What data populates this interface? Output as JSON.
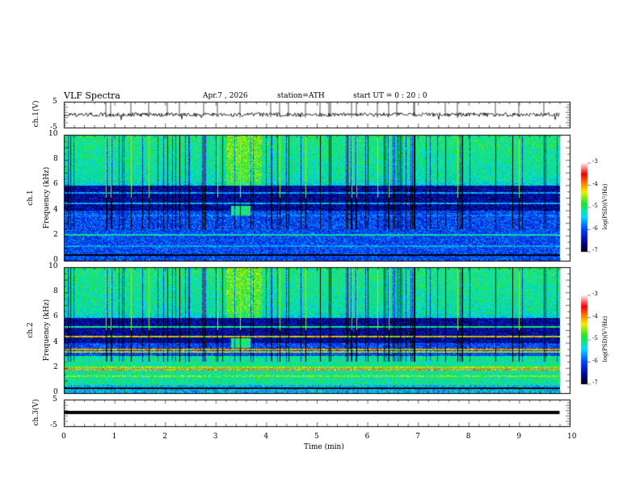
{
  "header": {
    "title": "VLF Spectra",
    "date": "Apr.7  , 2026",
    "station": "station=ATH",
    "start": "start  UT  =   0  : 20 : 0"
  },
  "chart_data": [
    {
      "type": "line",
      "name": "ch1",
      "ylabel": "ch.1(V)",
      "ylim": [
        -5,
        5
      ],
      "yticks": [
        "5",
        "-5"
      ],
      "baseline": 0
    },
    {
      "type": "heatmap",
      "name": "ch1-spectrogram",
      "ylabel_top": "ch.1",
      "ylabel": "Frequency  (kHz)",
      "ylim": [
        0,
        10
      ],
      "yticks": [
        "0",
        "2",
        "4",
        "6",
        "8",
        "10"
      ],
      "colorbar": {
        "label": "log(PSD)(V²/Hz)",
        "range": [
          -7,
          -3
        ],
        "ticks": [
          "-3",
          "-4",
          "-5",
          "-6",
          "-7"
        ]
      }
    },
    {
      "type": "heatmap",
      "name": "ch2-spectrogram",
      "ylabel_top": "ch.2",
      "ylabel": "Frequency  (kHz)",
      "ylim": [
        0,
        10
      ],
      "yticks": [
        "0",
        "2",
        "4",
        "6",
        "8",
        "10"
      ],
      "colorbar": {
        "label": "log(PSD)(V²/Hz)",
        "range": [
          -7,
          -3
        ],
        "ticks": [
          "-3",
          "-4",
          "-5",
          "-6",
          "-7"
        ]
      }
    },
    {
      "type": "line",
      "name": "ch3",
      "ylabel": "ch.3(V)",
      "ylim": [
        -5,
        5
      ],
      "yticks": [
        "5",
        "-5"
      ],
      "baseline": 0
    },
    {
      "type": "axis",
      "xlabel": "Time  (min)",
      "xlim": [
        0,
        10
      ],
      "xticks": [
        "0",
        "1",
        "2",
        "3",
        "4",
        "5",
        "6",
        "7",
        "8",
        "9",
        "10"
      ],
      "data_end": 9.8
    }
  ]
}
